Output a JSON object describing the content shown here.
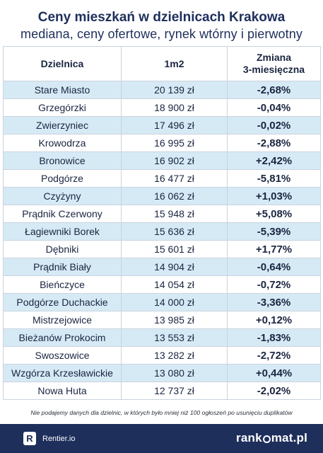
{
  "header": {
    "title": "Ceny mieszkań w dzielnicach Krakowa",
    "subtitle": "mediana, ceny ofertowe, rynek wtórny i pierwotny"
  },
  "table": {
    "columns": [
      "Dzielnica",
      "1m2",
      "Zmiana\n3-miesięczna"
    ],
    "rows": [
      [
        "Stare Miasto",
        "20 139 zł",
        "-2,68%"
      ],
      [
        "Grzegórzki",
        "18 900 zł",
        "-0,04%"
      ],
      [
        "Zwierzyniec",
        "17 496 zł",
        "-0,02%"
      ],
      [
        "Krowodrza",
        "16 995 zł",
        "-2,88%"
      ],
      [
        "Bronowice",
        "16 902 zł",
        "+2,42%"
      ],
      [
        "Podgórze",
        "16 477 zł",
        "-5,81%"
      ],
      [
        "Czyżyny",
        "16 062 zł",
        "+1,03%"
      ],
      [
        "Prądnik Czerwony",
        "15 948 zł",
        "+5,08%"
      ],
      [
        "Łagiewniki Borek",
        "15 636 zł",
        "-5,39%"
      ],
      [
        "Dębniki",
        "15 601 zł",
        "+1,77%"
      ],
      [
        "Prądnik Biały",
        "14 904 zł",
        "-0,64%"
      ],
      [
        "Bieńczyce",
        "14 054 zł",
        "-0,72%"
      ],
      [
        "Podgórze Duchackie",
        "14 000 zł",
        "-3,36%"
      ],
      [
        "Mistrzejowice",
        "13 985 zł",
        "+0,12%"
      ],
      [
        "Bieżanów Prokocim",
        "13 553 zł",
        "-1,83%"
      ],
      [
        "Swoszowice",
        "13 282 zł",
        "-2,72%"
      ],
      [
        "Wzgórza Krzesławickie",
        "13 080 zł",
        "+0,44%"
      ],
      [
        "Nowa Huta",
        "12 737 zł",
        "-2,02%"
      ]
    ]
  },
  "footnote": "Nie podajemy danych dla dzielnic, w których było mniej niż 100 ogłoszeń po usunięciu duplikatów",
  "footer": {
    "left_badge": "R",
    "left_label": "Rentier.io",
    "right_prefix": "rank",
    "right_suffix": "mat.pl"
  },
  "colors": {
    "navy": "#1e2f5c",
    "row_stripe": "#d6eaf6",
    "border": "#c9d3de"
  }
}
